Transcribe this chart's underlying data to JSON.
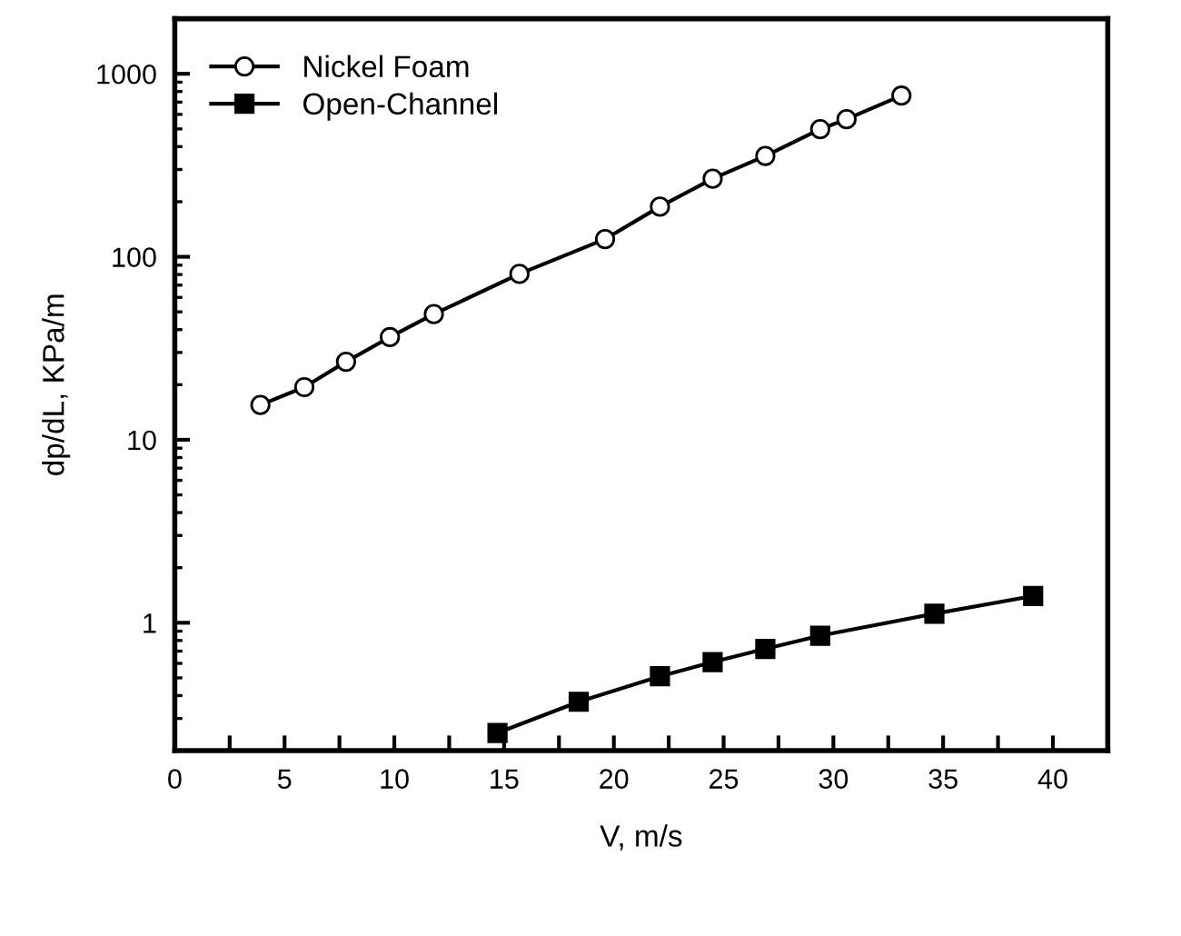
{
  "chart_data": {
    "type": "line",
    "xlabel": "V, m/s",
    "ylabel": "dp/dL, KPa/m",
    "log": "y",
    "grid": false,
    "legend": "top left",
    "line_style": "solid",
    "xlim": [
      0,
      42.5
    ],
    "xticks": [
      0,
      {
        "value": 2.5,
        "label": null
      },
      5,
      {
        "value": 7.5,
        "label": null
      },
      10,
      {
        "value": 12.5,
        "label": null
      },
      15,
      {
        "value": 17.5,
        "label": null
      },
      20,
      {
        "value": 22.5,
        "label": null
      },
      25,
      {
        "value": 27.5,
        "label": null
      },
      30,
      {
        "value": 32.5,
        "label": null
      },
      35,
      {
        "value": 37.5,
        "label": null
      },
      40
    ],
    "ylim": [
      0.2,
      2000
    ],
    "yticks": [
      1,
      10,
      100,
      1000
    ],
    "series": [
      {
        "name": "Nickel Foam",
        "color": "#000000",
        "marker": "circle",
        "x": [
          3.9,
          5.9,
          7.8,
          9.8,
          11.8,
          15.7,
          19.6,
          22.1,
          24.5,
          26.9,
          29.4,
          30.6,
          33.1
        ],
        "values": [
          15.5,
          19.4,
          26.7,
          36.4,
          48.6,
          80.6,
          125,
          188,
          267,
          356,
          498,
          565,
          760
        ]
      },
      {
        "name": "Open-Channel",
        "color": "#000000",
        "marker": "square",
        "x": [
          14.7,
          18.4,
          22.1,
          24.5,
          26.9,
          29.4,
          34.6,
          39.1
        ],
        "values": [
          0.25,
          0.37,
          0.51,
          0.61,
          0.72,
          0.85,
          1.12,
          1.4
        ]
      }
    ]
  }
}
